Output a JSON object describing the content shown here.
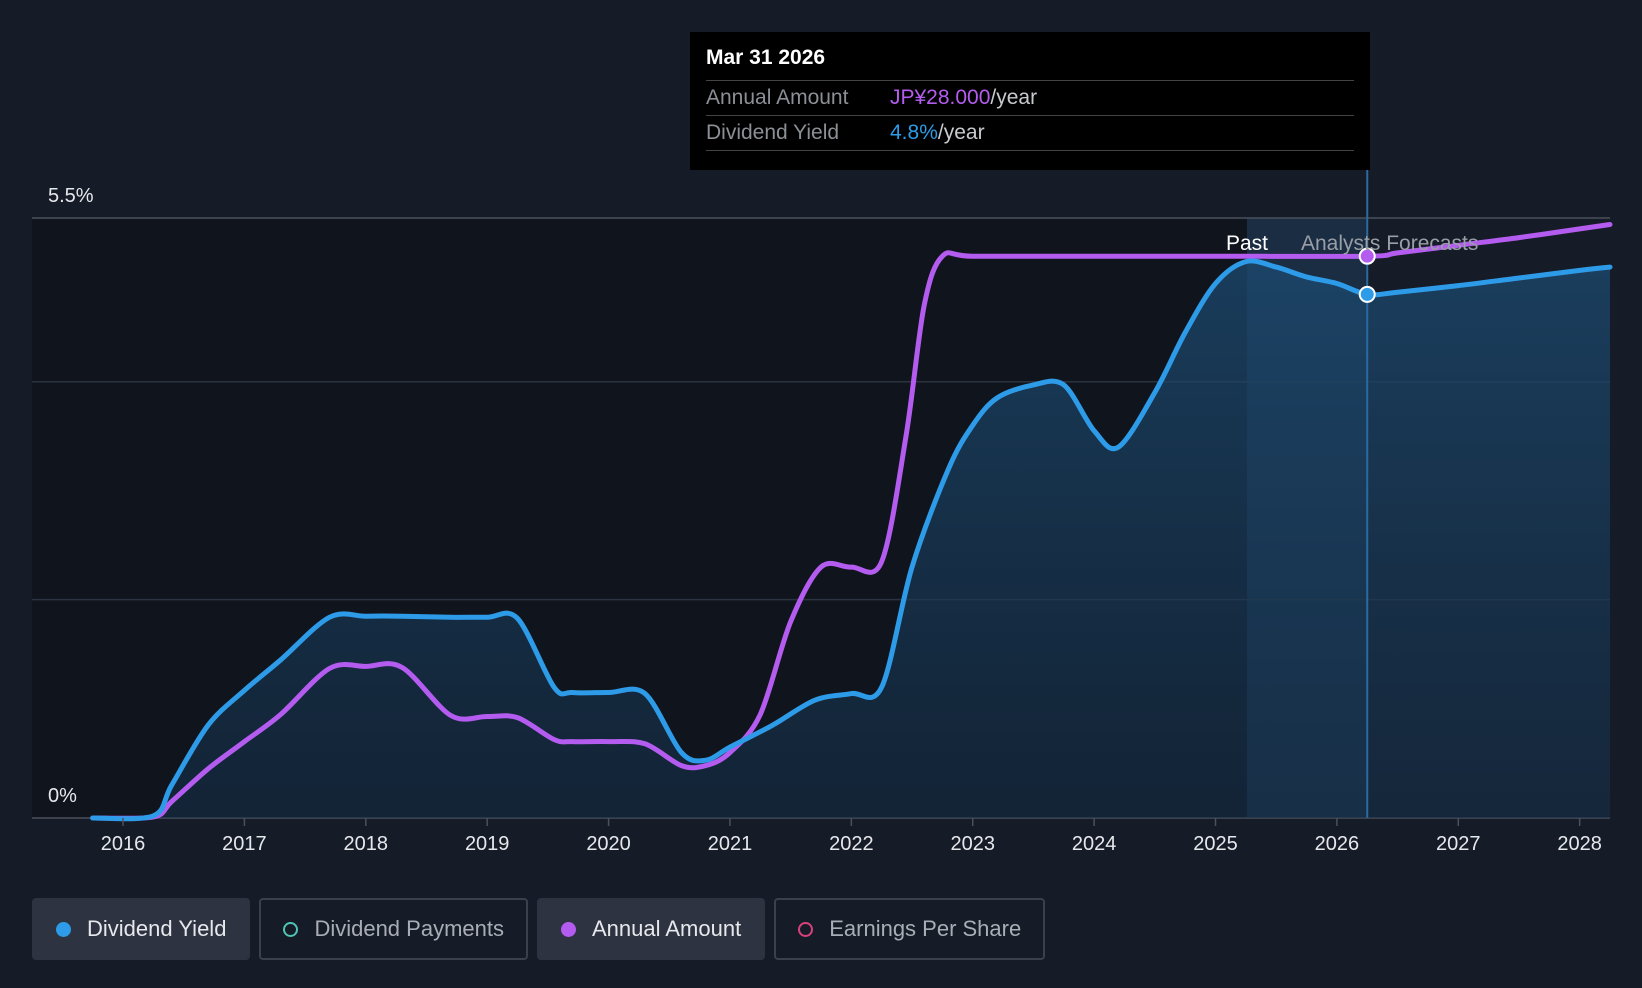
{
  "tooltip": {
    "date": "Mar 31 2026",
    "annual_label": "Annual Amount",
    "annual_value": "JP¥28.000",
    "annual_unit": "/year",
    "yield_label": "Dividend Yield",
    "yield_value": "4.8%",
    "yield_unit": "/year"
  },
  "regions": {
    "past_label": "Past",
    "forecast_label": "Analysts Forecasts"
  },
  "legend": [
    {
      "label": "Dividend Yield",
      "color": "#2d9be8",
      "active": true,
      "filled": true
    },
    {
      "label": "Dividend Payments",
      "color": "#4fc3b4",
      "active": false,
      "filled": false
    },
    {
      "label": "Annual Amount",
      "color": "#b45cf0",
      "active": true,
      "filled": true
    },
    {
      "label": "Earnings Per Share",
      "color": "#d9417a",
      "active": false,
      "filled": false
    }
  ],
  "chart_data": {
    "type": "line",
    "x_ticks": [
      "2016",
      "2017",
      "2018",
      "2019",
      "2020",
      "2021",
      "2022",
      "2023",
      "2024",
      "2025",
      "2026",
      "2027",
      "2028"
    ],
    "y_tick_labels": [
      "0%",
      "5.5%"
    ],
    "ylim": [
      0,
      5.5
    ],
    "xlim": [
      2015.25,
      2028.25
    ],
    "grid": true,
    "forecast_start": 2025.25,
    "highlight_date": 2026.25,
    "series": [
      {
        "name": "Dividend Yield",
        "color": "#2d9be8",
        "points": [
          [
            2015.75,
            0.0
          ],
          [
            2016.25,
            0.02
          ],
          [
            2016.4,
            0.3
          ],
          [
            2016.7,
            0.85
          ],
          [
            2017.0,
            1.17
          ],
          [
            2017.3,
            1.45
          ],
          [
            2017.7,
            1.84
          ],
          [
            2018.0,
            1.85
          ],
          [
            2018.3,
            1.85
          ],
          [
            2018.7,
            1.84
          ],
          [
            2019.0,
            1.84
          ],
          [
            2019.25,
            1.83
          ],
          [
            2019.55,
            1.2
          ],
          [
            2019.7,
            1.15
          ],
          [
            2020.0,
            1.15
          ],
          [
            2020.3,
            1.14
          ],
          [
            2020.6,
            0.6
          ],
          [
            2020.8,
            0.53
          ],
          [
            2021.0,
            0.65
          ],
          [
            2021.35,
            0.85
          ],
          [
            2021.7,
            1.08
          ],
          [
            2022.0,
            1.14
          ],
          [
            2022.25,
            1.2
          ],
          [
            2022.5,
            2.3
          ],
          [
            2022.8,
            3.2
          ],
          [
            2023.0,
            3.6
          ],
          [
            2023.2,
            3.85
          ],
          [
            2023.5,
            3.97
          ],
          [
            2023.75,
            3.97
          ],
          [
            2024.0,
            3.55
          ],
          [
            2024.2,
            3.4
          ],
          [
            2024.5,
            3.9
          ],
          [
            2024.75,
            4.45
          ],
          [
            2025.0,
            4.9
          ],
          [
            2025.25,
            5.1
          ],
          [
            2025.5,
            5.05
          ],
          [
            2025.75,
            4.96
          ],
          [
            2026.0,
            4.9
          ],
          [
            2026.25,
            4.8
          ],
          [
            2026.5,
            4.82
          ],
          [
            2027.0,
            4.88
          ],
          [
            2027.5,
            4.95
          ],
          [
            2028.0,
            5.02
          ],
          [
            2028.25,
            5.05
          ]
        ]
      },
      {
        "name": "Annual Amount",
        "color": "#b45cf0",
        "points": [
          [
            2015.75,
            0.0
          ],
          [
            2016.25,
            0.01
          ],
          [
            2016.4,
            0.15
          ],
          [
            2016.7,
            0.45
          ],
          [
            2017.0,
            0.7
          ],
          [
            2017.3,
            0.95
          ],
          [
            2017.7,
            1.37
          ],
          [
            2018.0,
            1.39
          ],
          [
            2018.3,
            1.38
          ],
          [
            2018.7,
            0.94
          ],
          [
            2019.0,
            0.93
          ],
          [
            2019.25,
            0.92
          ],
          [
            2019.55,
            0.72
          ],
          [
            2019.7,
            0.7
          ],
          [
            2020.0,
            0.7
          ],
          [
            2020.3,
            0.68
          ],
          [
            2020.6,
            0.48
          ],
          [
            2020.8,
            0.48
          ],
          [
            2021.0,
            0.6
          ],
          [
            2021.25,
            0.95
          ],
          [
            2021.5,
            1.8
          ],
          [
            2021.75,
            2.3
          ],
          [
            2022.0,
            2.3
          ],
          [
            2022.25,
            2.35
          ],
          [
            2022.45,
            3.5
          ],
          [
            2022.6,
            4.7
          ],
          [
            2022.75,
            5.15
          ],
          [
            2023.0,
            5.15
          ],
          [
            2024.0,
            5.15
          ],
          [
            2025.0,
            5.15
          ],
          [
            2026.25,
            5.15
          ],
          [
            2026.5,
            5.18
          ],
          [
            2027.0,
            5.25
          ],
          [
            2027.5,
            5.32
          ],
          [
            2028.0,
            5.4
          ],
          [
            2028.25,
            5.44
          ]
        ]
      }
    ]
  }
}
